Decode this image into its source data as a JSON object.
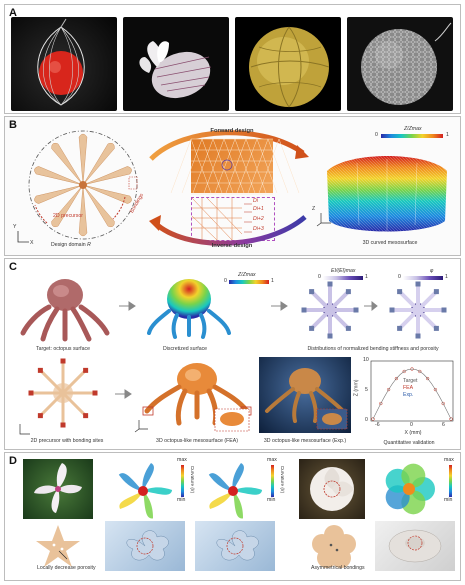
{
  "panels": {
    "a": {
      "label": "A"
    },
    "b": {
      "label": "B",
      "forward_design": "Forward design",
      "inverse_design": "Inverse design",
      "precursor": "2D precursor",
      "bondings": "Bondings",
      "design_domain": "Design domain",
      "domain_symbol": "R",
      "mesosurface": "3D curved mesosurface",
      "colorbar_title": "Z/Zmax",
      "colorbar_min": "0",
      "colorbar_max": "1",
      "di_labels": [
        "Di",
        "Di+1",
        "Di+2",
        "Di+3"
      ],
      "axis_x": "X",
      "axis_y": "Y",
      "axis_z": "Z"
    },
    "c": {
      "label": "C",
      "target": "Target: octopus surface",
      "discretized": "Discretized surface",
      "distributions": "Distributions of normalized bending stiffness and porosity",
      "precursor_bonding": "2D precursor with bonding sites",
      "fea": "3D octopus-like mesosurface (FEA)",
      "exp": "3D octopus-like mesosurface (Exp.)",
      "validation": "Quantitative validation",
      "cb1_title": "Z/Zmax",
      "cb2_title": "EI/(EI)max",
      "cb3_title": "φ",
      "cb_min": "0",
      "cb_max": "1",
      "legend": [
        "Target",
        "FEA",
        "Exp."
      ],
      "xlabel": "X (mm)",
      "ylabel": "Z (mm)",
      "xticks": [
        "-6",
        "0",
        "6"
      ],
      "yticks": [
        "0",
        "5",
        "10"
      ]
    },
    "d": {
      "label": "D",
      "curvature_label": "Curvature (/r)",
      "cb_max": "max",
      "cb_min": "min",
      "porosity_note": "Locally decrease porosity",
      "bonding_note": "Asymmetrical bondings"
    }
  },
  "colors": {
    "accent_red": "#c0392b",
    "arrow_orange": "#e8761e",
    "arrow_purple": "#5b3aa0",
    "precursor": "#d9a676"
  }
}
